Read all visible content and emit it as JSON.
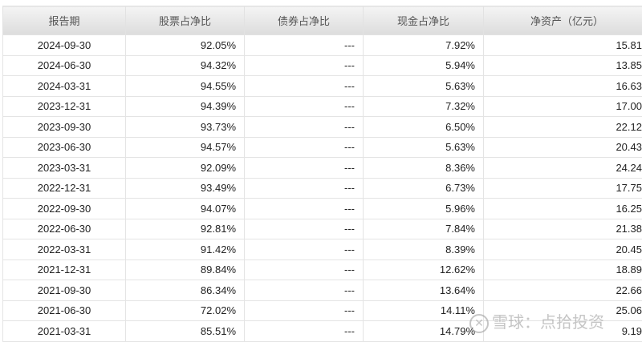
{
  "headers": [
    "报告期",
    "股票占净比",
    "债券占净比",
    "现金占净比",
    "净资产（亿元）"
  ],
  "rows": [
    [
      "2024-09-30",
      "92.05%",
      "---",
      "7.92%",
      "15.81"
    ],
    [
      "2024-06-30",
      "94.32%",
      "---",
      "5.94%",
      "13.85"
    ],
    [
      "2024-03-31",
      "94.55%",
      "---",
      "5.63%",
      "16.63"
    ],
    [
      "2023-12-31",
      "94.39%",
      "---",
      "7.32%",
      "17.00"
    ],
    [
      "2023-09-30",
      "93.73%",
      "---",
      "6.50%",
      "22.12"
    ],
    [
      "2023-06-30",
      "94.57%",
      "---",
      "5.63%",
      "20.43"
    ],
    [
      "2023-03-31",
      "92.09%",
      "---",
      "8.36%",
      "24.24"
    ],
    [
      "2022-12-31",
      "93.49%",
      "---",
      "6.73%",
      "17.75"
    ],
    [
      "2022-09-30",
      "94.07%",
      "---",
      "5.96%",
      "16.25"
    ],
    [
      "2022-06-30",
      "92.81%",
      "---",
      "7.84%",
      "21.38"
    ],
    [
      "2022-03-31",
      "91.42%",
      "---",
      "8.39%",
      "20.45"
    ],
    [
      "2021-12-31",
      "89.84%",
      "---",
      "12.62%",
      "18.89"
    ],
    [
      "2021-09-30",
      "86.34%",
      "---",
      "13.64%",
      "22.66"
    ],
    [
      "2021-06-30",
      "72.02%",
      "---",
      "14.11%",
      "25.06"
    ],
    [
      "2021-03-31",
      "85.51%",
      "---",
      "14.79%",
      "9.19"
    ]
  ],
  "watermark": "雪球：点拾投资"
}
